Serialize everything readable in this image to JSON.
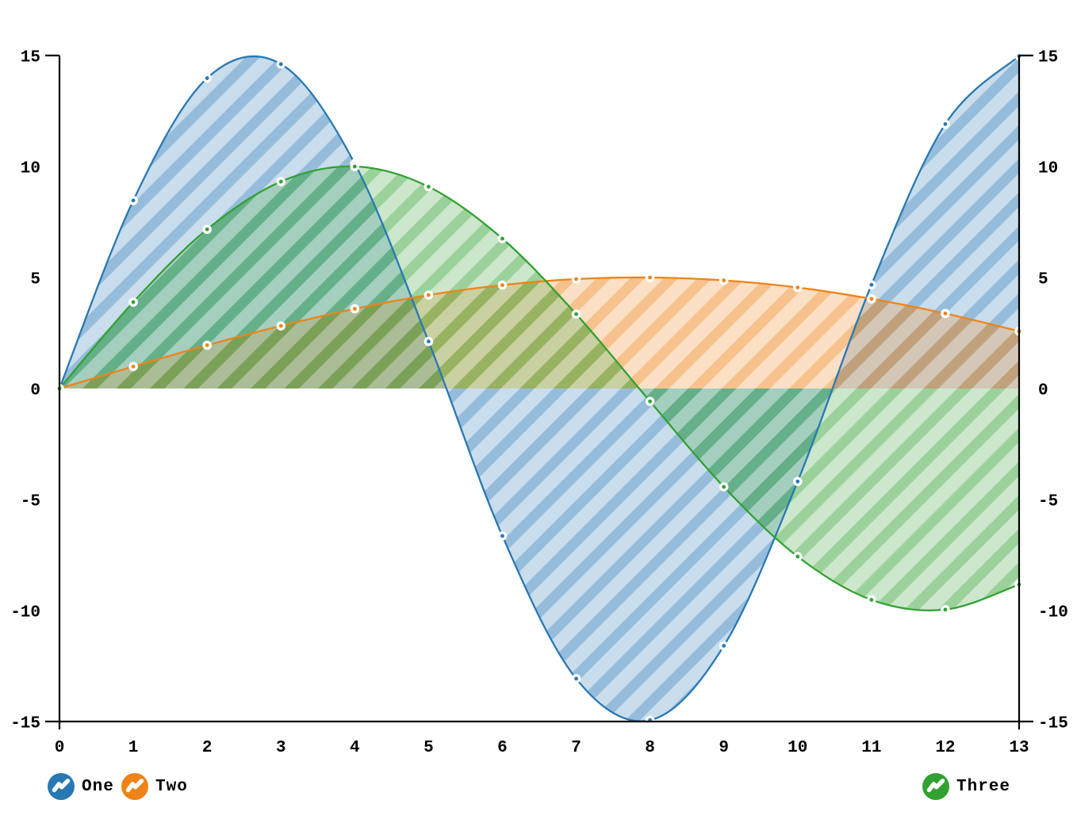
{
  "chart_data": {
    "type": "area",
    "variant": "smooth-spline-area-with-diagonal-hatch",
    "x": [
      0,
      1,
      2,
      3,
      4,
      5,
      6,
      7,
      8,
      9,
      10,
      11,
      12,
      13
    ],
    "series": [
      {
        "name": "One",
        "color": "#2878b4",
        "values": [
          0,
          8.47,
          13.98,
          14.61,
          10.13,
          2.12,
          -6.64,
          -13.07,
          -14.94,
          -11.59,
          -4.19,
          4.67,
          11.91,
          14.98
        ]
      },
      {
        "name": "Two",
        "color": "#ee8418",
        "values": [
          0,
          0.99,
          1.95,
          2.82,
          3.59,
          4.21,
          4.66,
          4.93,
          5.0,
          4.87,
          4.55,
          4.04,
          3.38,
          2.58
        ]
      },
      {
        "name": "Three",
        "color": "#32a132",
        "values": [
          0,
          3.89,
          7.17,
          9.32,
          10.0,
          9.09,
          6.75,
          3.35,
          -0.58,
          -4.43,
          -7.57,
          -9.52,
          -9.96,
          -8.83
        ]
      }
    ],
    "title": "",
    "xlabel": "",
    "ylabel": "",
    "xlim": [
      0,
      13
    ],
    "ylim": [
      -15,
      15
    ],
    "x_ticks": [
      0,
      1,
      2,
      3,
      4,
      5,
      6,
      7,
      8,
      9,
      10,
      11,
      12,
      13
    ],
    "y_ticks": [
      -15,
      -10,
      -5,
      0,
      5,
      10,
      15
    ],
    "y_axis_left": true,
    "y_axis_right": true,
    "grid": false,
    "baseline": 0,
    "marker": "white-circle-with-color-dot",
    "legend_position": "bottom",
    "axis_color": "#000000",
    "background": "#ffffff"
  },
  "legend": {
    "items": [
      {
        "label": "One",
        "color": "#2878b4",
        "icon": "spline-badge-icon"
      },
      {
        "label": "Two",
        "color": "#ee8418",
        "icon": "spline-badge-icon"
      },
      {
        "label": "Three",
        "color": "#32a132",
        "icon": "spline-badge-icon"
      }
    ]
  }
}
